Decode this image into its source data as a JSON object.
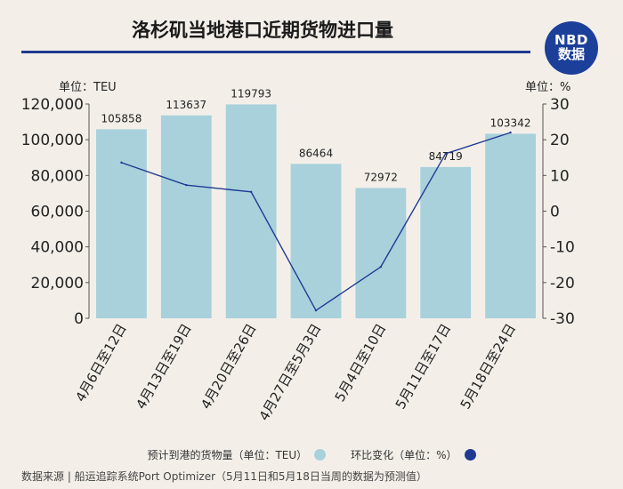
{
  "header": {
    "title": "洛杉矶当地港口近期货物进口量",
    "logo_line1": "NBD",
    "logo_line2": "数据"
  },
  "units": {
    "left": "单位：TEU",
    "right": "单位：%"
  },
  "legend": {
    "bar_label": "预计到港的货物量（单位：TEU）",
    "line_label": "环比变化（单位：%）"
  },
  "source": "数据来源 | 船运追踪系统Port Optimizer（5月11日和5月18日当周的数据为预测值）",
  "chart_data": {
    "type": "bar",
    "title": "洛杉矶当地港口近期货物进口量",
    "categories": [
      "4月6日至12日",
      "4月13日至19日",
      "4月20日至26日",
      "4月27日至5月3日",
      "5月4日至10日",
      "5月11日至17日",
      "5月18日至24日"
    ],
    "series": [
      {
        "name": "预计到港的货物量（单位：TEU）",
        "type": "bar",
        "axis": "left",
        "color": "#a8d1dc",
        "values": [
          105858,
          113637,
          119793,
          86464,
          72972,
          84719,
          103342
        ],
        "labels": [
          "105858",
          "113637",
          "119793",
          "86464",
          "72972",
          "84719",
          "103342"
        ]
      },
      {
        "name": "环比变化（单位：%）",
        "type": "line",
        "axis": "right",
        "color": "#1f3a93",
        "values": [
          13.6,
          7.3,
          5.4,
          -27.8,
          -15.6,
          16.1,
          22.0
        ]
      }
    ],
    "ylim_left": [
      0,
      120000
    ],
    "yticks_left": [
      "0",
      "20,000",
      "40,000",
      "60,000",
      "80,000",
      "100,000",
      "120,000"
    ],
    "ylim_right": [
      -30,
      30
    ],
    "yticks_right": [
      "-30",
      "-20",
      "-10",
      "0",
      "10",
      "20",
      "30"
    ],
    "grid": false,
    "legend_position": "bottom"
  },
  "colors": {
    "background": "#f3efe8",
    "accent": "#1f3a93",
    "bar": "#a8d1dc"
  }
}
